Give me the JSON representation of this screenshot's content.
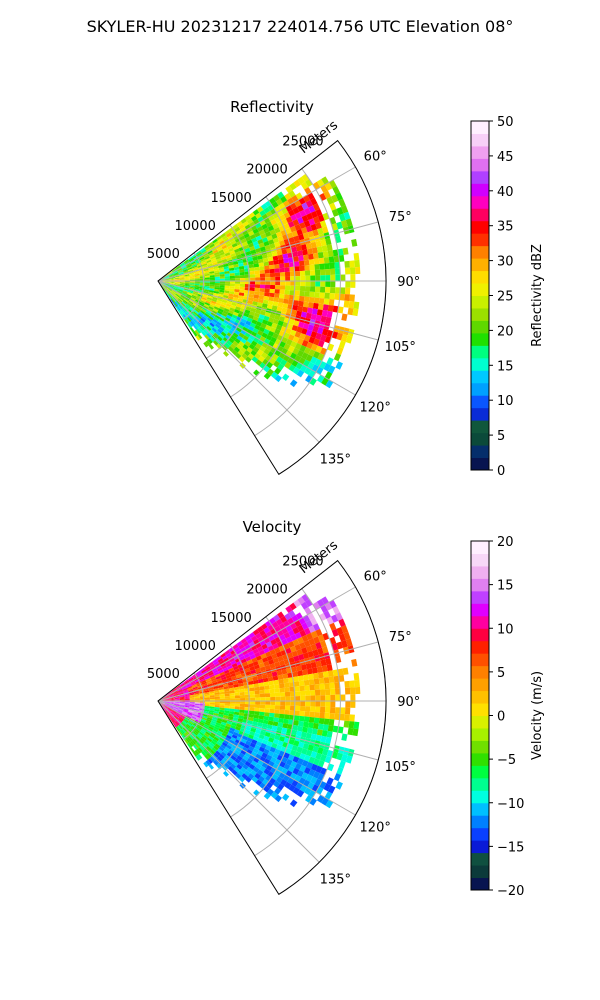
{
  "figure": {
    "suptitle": "SKYLER-HU  20231217  224014.756 UTC Elevation 08°"
  },
  "chart_data": [
    {
      "type": "polar-sector",
      "title": "Reflectivity",
      "radial_axis_label": "Meters",
      "radial_ticks": [
        5000,
        10000,
        15000,
        20000,
        25000
      ],
      "radial_tick_labels": [
        "5000",
        "10000",
        "15000",
        "20000",
        "25000"
      ],
      "rlim": [
        0,
        25000
      ],
      "azimuth_ticks_deg": [
        60,
        75,
        90,
        105,
        120,
        135
      ],
      "azimuth_tick_labels": [
        "60°",
        "75°",
        "90°",
        "105°",
        "120°",
        "135°"
      ],
      "azimuth_range_deg": [
        52,
        148
      ],
      "grid": true,
      "field": "reflectivity",
      "data_extent_km": 22,
      "colorbar": {
        "label": "Reflectivity dBZ",
        "range": [
          0,
          50
        ],
        "ticks": [
          0,
          5,
          10,
          15,
          20,
          25,
          30,
          35,
          40,
          45,
          50
        ],
        "tick_labels": [
          "0",
          "5",
          "10",
          "15",
          "20",
          "25",
          "30",
          "35",
          "40",
          "45",
          "50"
        ],
        "colors": [
          "#081450",
          "#052e6b",
          "#0b4a3a",
          "#10573c",
          "#0a2bd6",
          "#0a56ff",
          "#00a0ff",
          "#00c8ff",
          "#00ffd0",
          "#00ff80",
          "#20e000",
          "#5fd800",
          "#9be000",
          "#c8f000",
          "#f0f000",
          "#ffdc00",
          "#ffb000",
          "#ff8000",
          "#ff3000",
          "#ff0000",
          "#ff0060",
          "#ff00c0",
          "#d000ff",
          "#b040ff",
          "#e070f0",
          "#f0a0f0",
          "#f8d0f8",
          "#fff0ff"
        ]
      },
      "value_description": "dBZ values mostly 20-40; strong cells (35-40 dBZ) near 15-20 km at 60-75° and 90-105° azimuth"
    },
    {
      "type": "polar-sector",
      "title": "Velocity",
      "radial_axis_label": "Meters",
      "radial_ticks": [
        5000,
        10000,
        15000,
        20000,
        25000
      ],
      "radial_tick_labels": [
        "5000",
        "10000",
        "15000",
        "20000",
        "25000"
      ],
      "rlim": [
        0,
        25000
      ],
      "azimuth_ticks_deg": [
        60,
        75,
        90,
        105,
        120,
        135
      ],
      "azimuth_tick_labels": [
        "60°",
        "75°",
        "90°",
        "105°",
        "120°",
        "135°"
      ],
      "azimuth_range_deg": [
        52,
        148
      ],
      "grid": true,
      "field": "velocity",
      "data_extent_km": 22,
      "colorbar": {
        "label": "Velocity (m/s)",
        "range": [
          -20,
          20
        ],
        "ticks": [
          -20,
          -15,
          -10,
          -5,
          0,
          5,
          10,
          15,
          20
        ],
        "tick_labels": [
          "−20",
          "−15",
          "−10",
          "−5",
          "0",
          "5",
          "10",
          "15",
          "20"
        ],
        "colors": [
          "#081450",
          "#0b3a3a",
          "#0f5040",
          "#0a1ad6",
          "#0a40ff",
          "#0080ff",
          "#00c0ff",
          "#00ffe0",
          "#00ff90",
          "#00ff40",
          "#30e000",
          "#70e000",
          "#a8f000",
          "#d8f000",
          "#ffe000",
          "#ffc000",
          "#ffa000",
          "#ff8000",
          "#ff5000",
          "#ff2000",
          "#ff0040",
          "#ff00a0",
          "#e000ff",
          "#c040ff",
          "#e080f0",
          "#f0b0f0",
          "#f8d8f8",
          "#fff0ff"
        ]
      },
      "value_description": "Radial velocity: -10 to -15 m/s (cyan) along lower/southern sector, ~0 to 5 m/s (yellow) across the middle, 10-15 m/s (red/magenta) near 60° azimuth and near the radar origin"
    }
  ]
}
